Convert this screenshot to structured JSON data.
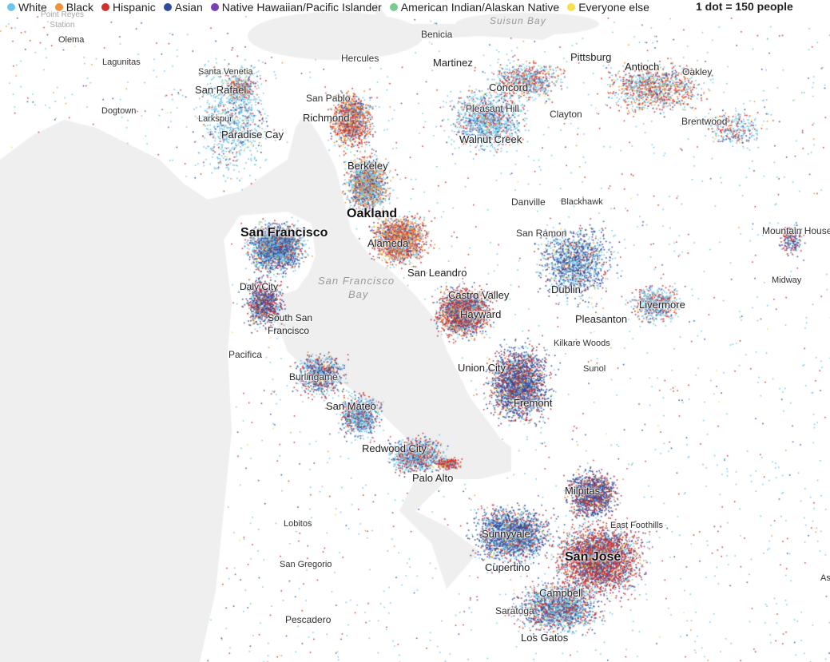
{
  "legend": {
    "items": [
      {
        "label": "White",
        "color": "#6cc7ee"
      },
      {
        "label": "Black",
        "color": "#f0923a"
      },
      {
        "label": "Hispanic",
        "color": "#d1312c"
      },
      {
        "label": "Asian",
        "color": "#2f4da0"
      },
      {
        "label": "Native Hawaiian/Pacific Islander",
        "color": "#7d3fb8"
      },
      {
        "label": "American Indian/Alaskan Native",
        "color": "#79cc8f"
      },
      {
        "label": "Everyone else",
        "color": "#f7e04b"
      }
    ],
    "scale": "1 dot = 150 people"
  },
  "map": {
    "land_color": "#ffffff",
    "water_color": "#efefef",
    "places": {
      "point_reyes_station": "Point Reyes Station",
      "olema": "Olema",
      "lagunitas": "Lagunitas",
      "santa_venetia": "Santa Venetia",
      "san_rafael": "San Rafael",
      "dogtown": "Dogtown",
      "larkspur": "Larkspur",
      "paradise_cay": "Paradise Cay",
      "benicia": "Benicia",
      "suisun_bay": "Suisun Bay",
      "hercules": "Hercules",
      "martinez": "Martinez",
      "pittsburg": "Pittsburg",
      "antioch": "Antioch",
      "oakley": "Oakley",
      "san_pablo": "San Pablo",
      "richmond": "Richmond",
      "concord": "Concord",
      "pleasant_hill": "Pleasant Hill",
      "clayton": "Clayton",
      "brentwood": "Brentwood",
      "walnut_creek": "Walnut Creek",
      "berkeley": "Berkeley",
      "danville": "Danville",
      "blackhawk": "Blackhawk",
      "oakland": "Oakland",
      "san_francisco": "San Francisco",
      "mountain_house": "Mountain House",
      "alameda": "Alameda",
      "san_ramon": "San Ramon",
      "midway": "Midway",
      "san_leandro": "San Leandro",
      "san_francisco_bay_1": "San Francisco",
      "san_francisco_bay_2": "Bay",
      "daly_city": "Daly City",
      "castro_valley": "Castro Valley",
      "dublin": "Dublin",
      "livermore": "Livermore",
      "south_san_francisco_1": "South San",
      "south_san_francisco_2": "Francisco",
      "hayward": "Hayward",
      "pleasanton": "Pleasanton",
      "pacifica": "Pacifica",
      "kilkare_woods": "Kilkare Woods",
      "sunol": "Sunol",
      "union_city": "Union City",
      "burlingame": "Burlingame",
      "san_mateo": "San Mateo",
      "fremont": "Fremont",
      "redwood_city": "Redwood City",
      "palo_alto": "Palo Alto",
      "milpitas": "Milpitas",
      "lobitos": "Lobitos",
      "east_foothills": "East Foothills",
      "sunnyvale": "Sunnyvale",
      "san_jose": "San José",
      "san_gregorio": "San Gregorio",
      "cupertino": "Cupertino",
      "campbell": "Campbell",
      "pescadero": "Pescadero",
      "saratoga": "Saratoga",
      "los_gatos": "Los Gatos",
      "as_edge": "As"
    }
  }
}
